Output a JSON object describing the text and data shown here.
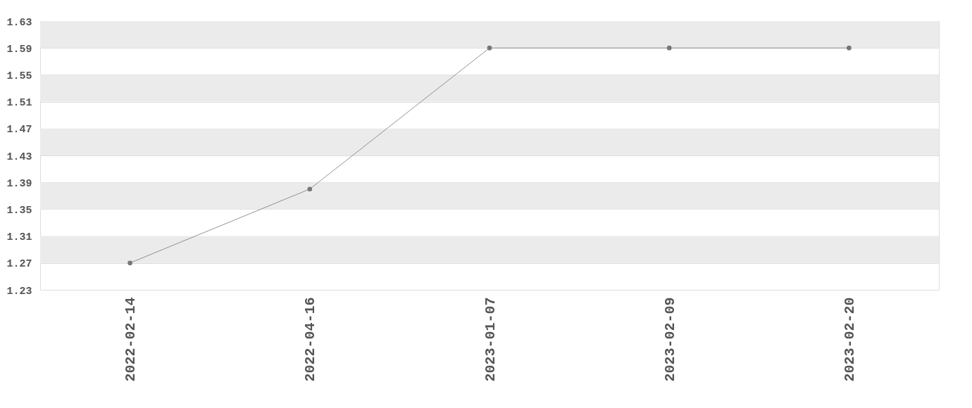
{
  "chart_data": {
    "type": "line",
    "categories": [
      "2022-02-14",
      "2022-04-16",
      "2023-01-07",
      "2023-02-09",
      "2023-02-20"
    ],
    "series": [
      {
        "color": "#777777",
        "values": [
          1.27,
          1.38,
          1.59,
          1.59,
          1.59
        ]
      }
    ],
    "ylim": [
      1.23,
      1.63
    ],
    "yticks": [
      1.23,
      1.27,
      1.31,
      1.35,
      1.39,
      1.43,
      1.47,
      1.51,
      1.55,
      1.59,
      1.63
    ],
    "grid": "y",
    "marker": "circle",
    "line_style": "solid",
    "legend": false
  }
}
